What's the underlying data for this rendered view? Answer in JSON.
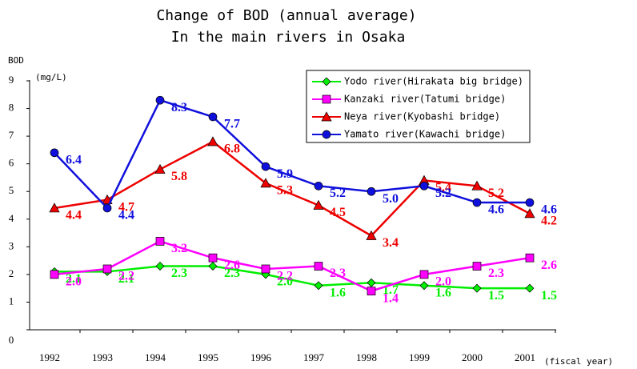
{
  "chart_data": {
    "type": "line",
    "title": "Change of BOD (annual average)",
    "subtitle": "In the main rivers in Osaka",
    "y_label": "BOD",
    "y_unit": "(mg/L)",
    "x_unit": "(fiscal year)",
    "categories": [
      "1992",
      "1993",
      "1994",
      "1995",
      "1996",
      "1997",
      "1998",
      "1999",
      "2000",
      "2001"
    ],
    "ylim": [
      0,
      9
    ],
    "yticks": [
      0,
      1,
      2,
      3,
      4,
      5,
      6,
      7,
      8,
      9
    ],
    "legend": "top-right",
    "series": [
      {
        "name": "Yodo river(Hirakata big bridge)",
        "color": "#00ee00",
        "marker": "diamond",
        "values": [
          2.1,
          2.1,
          2.3,
          2.3,
          2.0,
          1.6,
          1.7,
          1.6,
          1.5,
          1.5
        ],
        "value_labels": [
          "2.1",
          "2.1",
          "2.3",
          "2.3",
          "2.0",
          "1.6",
          "1.7",
          "1.6",
          "1.5",
          "1.5"
        ]
      },
      {
        "name": "Kanzaki river(Tatumi bridge)",
        "color": "#ff00ff",
        "marker": "square",
        "values": [
          2.0,
          2.2,
          3.2,
          2.6,
          2.2,
          2.3,
          1.4,
          2.0,
          2.3,
          2.6
        ],
        "value_labels": [
          "2.0",
          "2.2",
          "3.2",
          "2.6",
          "2.2",
          "2.3",
          "1.4",
          "2.0",
          "2.3",
          "2.6"
        ]
      },
      {
        "name": "Neya river(Kyobashi bridge)",
        "color": "#ee0000",
        "marker": "triangle",
        "values": [
          4.4,
          4.7,
          5.8,
          6.8,
          5.3,
          4.5,
          3.4,
          5.4,
          5.2,
          4.2
        ],
        "value_labels": [
          "4.4",
          "4.7",
          "5.8",
          "6.8",
          "5.3",
          "4.5",
          "3.4",
          "5.4",
          "5.2",
          "4.2"
        ]
      },
      {
        "name": "Yamato river(Kawachi bridge)",
        "color": "#1010dd",
        "marker": "circle",
        "values": [
          6.4,
          4.4,
          8.3,
          7.7,
          5.9,
          5.2,
          5.0,
          5.2,
          4.6,
          4.6
        ],
        "value_labels": [
          "6.4",
          "4.4",
          "8.3",
          "7.7",
          "5.9",
          "5.2",
          "5.0",
          "5.2",
          "4.6",
          "4.6"
        ]
      }
    ]
  }
}
